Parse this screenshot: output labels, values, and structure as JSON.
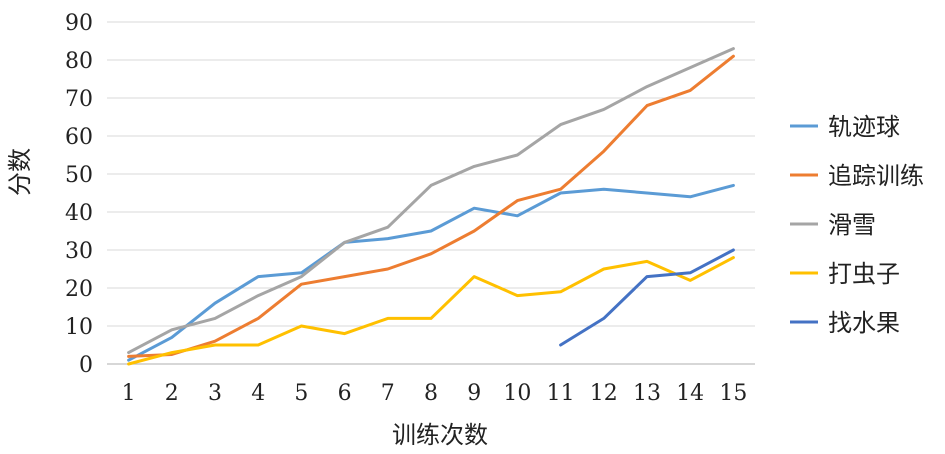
{
  "chart_data": {
    "type": "line",
    "xlabel": "训练次数",
    "ylabel": "分数",
    "ylim": [
      0,
      90
    ],
    "yticks": [
      0,
      10,
      20,
      30,
      40,
      50,
      60,
      70,
      80,
      90
    ],
    "categories": [
      "1",
      "2",
      "3",
      "4",
      "5",
      "6",
      "7",
      "8",
      "9",
      "10",
      "11",
      "12",
      "13",
      "14",
      "15"
    ],
    "grid": "horizontal",
    "legend_position": "right",
    "series": [
      {
        "name": "轨迹球",
        "color": "#5b9bd5",
        "values": [
          1,
          7,
          16,
          23,
          24,
          32,
          33,
          35,
          41,
          39,
          45,
          46,
          45,
          44,
          47
        ]
      },
      {
        "name": "追踪训练",
        "color": "#ed7d31",
        "values": [
          2,
          2.5,
          6,
          12,
          21,
          23,
          25,
          29,
          35,
          43,
          46,
          56,
          68,
          72,
          81
        ]
      },
      {
        "name": "滑雪",
        "color": "#a5a5a5",
        "values": [
          3,
          9,
          12,
          18,
          23,
          32,
          36,
          47,
          52,
          55,
          63,
          67,
          73,
          78,
          83
        ]
      },
      {
        "name": "打虫子",
        "color": "#ffc000",
        "values": [
          0,
          3,
          5,
          5,
          10,
          8,
          12,
          12,
          23,
          18,
          19,
          25,
          27,
          22,
          28
        ]
      },
      {
        "name": "找水果",
        "color": "#4472c4",
        "values": [
          null,
          null,
          null,
          null,
          null,
          null,
          null,
          null,
          null,
          null,
          5,
          12,
          23,
          24,
          30
        ]
      }
    ]
  }
}
